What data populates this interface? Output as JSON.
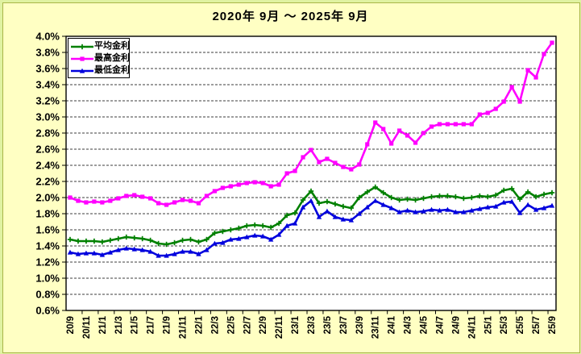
{
  "chart_data": {
    "type": "line",
    "title": "2020年 9月 ～ 2025年 9月",
    "ylim": [
      0.6,
      4.0
    ],
    "y_tick_step": "0.2%",
    "grid": "horizontal-dashed",
    "legend_position": "top-left-inside",
    "n_points": 61,
    "x_tick_every": 2,
    "y_ticks": [
      "4.0%",
      "3.8%",
      "3.6%",
      "3.4%",
      "3.2%",
      "3.0%",
      "2.8%",
      "2.6%",
      "2.4%",
      "2.2%",
      "2.0%",
      "1.8%",
      "1.6%",
      "1.4%",
      "1.2%",
      "1.0%",
      "0.8%",
      "0.6%"
    ],
    "x_tick_labels": [
      "20/9",
      "20/11",
      "21/1",
      "21/3",
      "21/5",
      "21/7",
      "21/9",
      "21/11",
      "22/1",
      "22/3",
      "22/5",
      "22/7",
      "22/9",
      "22/11",
      "23/1",
      "23/3",
      "23/5",
      "23/7",
      "23/9",
      "23/11",
      "24/1",
      "24/3",
      "24/5",
      "24/7",
      "24/9",
      "24/11",
      "25/1",
      "25/3",
      "25/5",
      "25/7",
      "25/9"
    ],
    "series": [
      {
        "name": "平均金利",
        "color": "#008000",
        "marker": "plus",
        "values": [
          1.48,
          1.46,
          1.46,
          1.46,
          1.45,
          1.47,
          1.49,
          1.51,
          1.5,
          1.49,
          1.47,
          1.43,
          1.42,
          1.44,
          1.47,
          1.48,
          1.45,
          1.48,
          1.56,
          1.58,
          1.6,
          1.62,
          1.65,
          1.66,
          1.65,
          1.63,
          1.68,
          1.78,
          1.81,
          1.97,
          2.08,
          1.93,
          1.95,
          1.92,
          1.89,
          1.87,
          2.0,
          2.07,
          2.13,
          2.06,
          2.0,
          1.97,
          1.98,
          1.97,
          1.99,
          2.01,
          2.02,
          2.02,
          2.01,
          1.99,
          2.0,
          2.02,
          2.01,
          2.03,
          2.09,
          2.11,
          1.98,
          2.07,
          2.01,
          2.04,
          2.06
        ]
      },
      {
        "name": "最高金利",
        "color": "#ff00ff",
        "marker": "square",
        "values": [
          2.0,
          1.96,
          1.94,
          1.95,
          1.94,
          1.96,
          1.99,
          2.02,
          2.03,
          2.01,
          1.99,
          1.93,
          1.91,
          1.94,
          1.97,
          1.96,
          1.93,
          2.02,
          2.08,
          2.12,
          2.14,
          2.16,
          2.18,
          2.19,
          2.18,
          2.14,
          2.16,
          2.3,
          2.33,
          2.5,
          2.59,
          2.44,
          2.48,
          2.43,
          2.38,
          2.35,
          2.41,
          2.66,
          2.93,
          2.85,
          2.67,
          2.83,
          2.77,
          2.68,
          2.8,
          2.88,
          2.91,
          2.91,
          2.91,
          2.91,
          2.91,
          3.03,
          3.05,
          3.1,
          3.19,
          3.37,
          3.19,
          3.58,
          3.49,
          3.78,
          3.92
        ]
      },
      {
        "name": "最低金利",
        "color": "#0000dd",
        "marker": "triangle",
        "values": [
          1.32,
          1.3,
          1.31,
          1.31,
          1.29,
          1.32,
          1.35,
          1.37,
          1.36,
          1.35,
          1.33,
          1.28,
          1.28,
          1.3,
          1.33,
          1.33,
          1.3,
          1.35,
          1.43,
          1.44,
          1.48,
          1.49,
          1.51,
          1.53,
          1.52,
          1.48,
          1.54,
          1.65,
          1.68,
          1.88,
          1.96,
          1.76,
          1.83,
          1.76,
          1.73,
          1.72,
          1.8,
          1.88,
          1.96,
          1.91,
          1.87,
          1.82,
          1.84,
          1.82,
          1.83,
          1.85,
          1.84,
          1.85,
          1.82,
          1.82,
          1.84,
          1.86,
          1.88,
          1.89,
          1.94,
          1.95,
          1.81,
          1.91,
          1.85,
          1.87,
          1.9
        ]
      }
    ],
    "palette": {
      "page_bg": "#e0f2a2",
      "chart_bg": "#ffffc3",
      "frame_border": "#a9b648",
      "plot_bg": "#ffffff",
      "grid": "#3c3c3c",
      "axis": "#000000"
    }
  }
}
